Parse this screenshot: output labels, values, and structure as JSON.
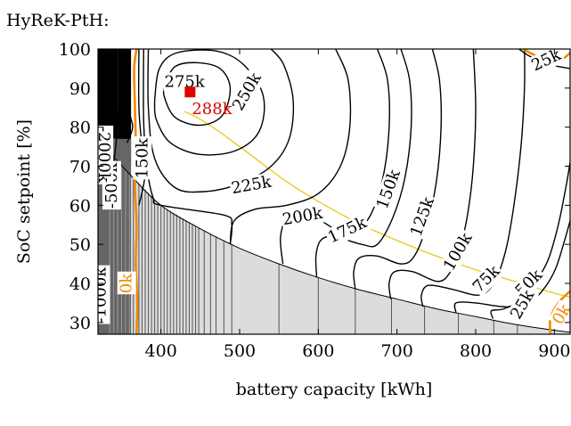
{
  "figure_title": "HyReK-PtH:",
  "chart_data": {
    "type": "contour",
    "title": "HyReK-PtH:",
    "xlabel": "battery capacity [kWh]",
    "ylabel": "SoC setpoint [%]",
    "xlim": [
      320,
      920
    ],
    "ylim": [
      27,
      100
    ],
    "xticks": [
      400,
      500,
      600,
      700,
      800,
      900
    ],
    "yticks": [
      30,
      40,
      50,
      60,
      70,
      80,
      90,
      100
    ],
    "grid": false,
    "optimum": {
      "x": 437,
      "y": 89,
      "label": "288k",
      "color": "#e00000"
    },
    "infeasible_boundary": [
      [
        320,
        77
      ],
      [
        360,
        68
      ],
      [
        400,
        60
      ],
      [
        450,
        54
      ],
      [
        500,
        49
      ],
      [
        550,
        45
      ],
      [
        600,
        41.5
      ],
      [
        650,
        38.5
      ],
      [
        700,
        36
      ],
      [
        750,
        33.5
      ],
      [
        800,
        31.5
      ],
      [
        850,
        29.5
      ],
      [
        900,
        28
      ],
      [
        920,
        27.5
      ]
    ],
    "highlight_curve": [
      [
        430,
        84
      ],
      [
        450,
        82
      ],
      [
        480,
        78
      ],
      [
        520,
        72
      ],
      [
        560,
        66
      ],
      [
        600,
        61
      ],
      [
        650,
        55.5
      ],
      [
        700,
        51
      ],
      [
        750,
        47
      ],
      [
        800,
        43.5
      ],
      [
        850,
        40.5
      ],
      [
        900,
        37.5
      ],
      [
        920,
        36.5
      ]
    ],
    "contours": [
      {
        "level": "275k",
        "points": [
          [
            405,
            91
          ],
          [
            418,
            95.5
          ],
          [
            445,
            96.5
          ],
          [
            475,
            95
          ],
          [
            488,
            90
          ],
          [
            478,
            83
          ],
          [
            450,
            80.5
          ],
          [
            418,
            82.5
          ],
          [
            404,
            88
          ],
          [
            405,
            91
          ]
        ],
        "label": {
          "text": "275k",
          "x": 430,
          "y": 91.5,
          "angle": 0
        }
      },
      {
        "level": "250k",
        "points": [
          [
            392,
            87
          ],
          [
            398,
            95
          ],
          [
            420,
            99
          ],
          [
            470,
            99.5
          ],
          [
            505,
            96
          ],
          [
            530,
            88
          ],
          [
            525,
            79
          ],
          [
            495,
            74
          ],
          [
            450,
            73
          ],
          [
            412,
            76
          ],
          [
            394,
            82
          ],
          [
            392,
            87
          ]
        ],
        "label": {
          "text": "250k",
          "x": 510,
          "y": 89,
          "angle": -60
        }
      },
      {
        "level": "225k",
        "points": [
          [
            384,
            100
          ],
          [
            384,
            85
          ],
          [
            392,
            72
          ],
          [
            418,
            64.5
          ],
          [
            455,
            63.5
          ],
          [
            500,
            65.5
          ],
          [
            540,
            70
          ],
          [
            563,
            77
          ],
          [
            568,
            87
          ],
          [
            556,
            96
          ],
          [
            540,
            100
          ]
        ],
        "label": {
          "text": "225k",
          "x": 515,
          "y": 65,
          "angle": -10
        }
      },
      {
        "level": "200k",
        "points": [
          [
            378,
            100
          ],
          [
            378,
            82
          ],
          [
            382,
            70
          ],
          [
            390,
            62
          ],
          [
            400,
            60
          ],
          [
            480,
            57.5
          ],
          [
            490,
            55
          ],
          [
            488,
            50
          ]
        ],
        "label": {
          "text": "200k",
          "x": 580,
          "y": 57,
          "angle": -10
        }
      },
      {
        "level": "200k",
        "points": [
          [
            488,
            50
          ],
          [
            493,
            56
          ],
          [
            520,
            59
          ],
          [
            560,
            60
          ],
          [
            600,
            63
          ],
          [
            628,
            70
          ],
          [
            640,
            80
          ],
          [
            638,
            92
          ],
          [
            622,
            100
          ]
        ],
        "label": null
      },
      {
        "level": "175k",
        "points": [
          [
            555,
            45
          ],
          [
            552,
            52
          ],
          [
            562,
            57
          ],
          [
            585,
            58
          ],
          [
            620,
            54
          ],
          [
            640,
            52
          ],
          [
            665,
            57
          ],
          [
            682,
            67
          ],
          [
            690,
            80
          ],
          [
            688,
            92
          ],
          [
            675,
            100
          ]
        ],
        "label": {
          "text": "175k",
          "x": 637,
          "y": 53.5,
          "angle": -25
        }
      },
      {
        "level": "150k",
        "points": [
          [
            372,
            100
          ],
          [
            372,
            85
          ],
          [
            376,
            75
          ],
          [
            380,
            68
          ],
          [
            372,
            60
          ]
        ],
        "label": {
          "text": "150k",
          "x": 377,
          "y": 72,
          "angle": -90
        }
      },
      {
        "level": "150k",
        "points": [
          [
            598,
            41.5
          ],
          [
            597,
            47
          ],
          [
            603,
            51
          ],
          [
            620,
            52
          ],
          [
            655,
            50
          ],
          [
            675,
            50
          ],
          [
            695,
            57
          ],
          [
            710,
            67
          ],
          [
            718,
            80
          ],
          [
            716,
            92
          ],
          [
            705,
            100
          ]
        ],
        "label": {
          "text": "150k",
          "x": 690,
          "y": 64,
          "angle": -70
        }
      },
      {
        "level": "125k",
        "points": [
          [
            647,
            38.5
          ],
          [
            645,
            43
          ],
          [
            652,
            46.5
          ],
          [
            675,
            47
          ],
          [
            705,
            45
          ],
          [
            722,
            47
          ],
          [
            738,
            55
          ],
          [
            750,
            66
          ],
          [
            756,
            80
          ],
          [
            754,
            92
          ],
          [
            745,
            100
          ]
        ],
        "label": {
          "text": "125k",
          "x": 733,
          "y": 57,
          "angle": -70
        }
      },
      {
        "level": "100k",
        "points": [
          [
            692,
            36
          ],
          [
            690,
            40
          ],
          [
            697,
            43
          ],
          [
            720,
            43
          ],
          [
            752,
            40.5
          ],
          [
            768,
            43
          ],
          [
            780,
            49
          ],
          [
            790,
            58
          ],
          [
            797,
            70
          ],
          [
            800,
            85
          ],
          [
            797,
            100
          ]
        ],
        "label": {
          "text": "100k",
          "x": 778,
          "y": 48,
          "angle": -60
        }
      },
      {
        "level": "75k",
        "points": [
          [
            733,
            34
          ],
          [
            731,
            37
          ],
          [
            740,
            39.5
          ],
          [
            770,
            38.5
          ],
          [
            800,
            37
          ],
          [
            815,
            38
          ],
          [
            828,
            42
          ],
          [
            840,
            50
          ],
          [
            850,
            62
          ],
          [
            858,
            76
          ],
          [
            862,
            90
          ],
          [
            862,
            100
          ]
        ],
        "label": {
          "text": "75k",
          "x": 814,
          "y": 41,
          "angle": -45
        }
      },
      {
        "level": "50k",
        "points": [
          [
            775,
            32.5
          ],
          [
            775,
            35
          ],
          [
            800,
            35
          ],
          [
            840,
            34
          ],
          [
            870,
            35.5
          ],
          [
            888,
            39
          ],
          [
            902,
            44
          ],
          [
            913,
            51
          ],
          [
            920,
            56
          ]
        ],
        "label": {
          "text": "50k",
          "x": 868,
          "y": 40,
          "angle": -45
        }
      },
      {
        "level": "25k",
        "points": [
          [
            822,
            31
          ],
          [
            820,
            33
          ],
          [
            836,
            33.5
          ],
          [
            860,
            36
          ],
          [
            875,
            40
          ],
          [
            892,
            46
          ],
          [
            905,
            55
          ],
          [
            915,
            65
          ],
          [
            920,
            71
          ]
        ],
        "label": {
          "text": "25k",
          "x": 860,
          "y": 34.5,
          "angle": -60
        }
      },
      {
        "level": "25k",
        "points": [
          [
            855,
            100
          ],
          [
            870,
            98
          ],
          [
            895,
            96
          ],
          [
            920,
            95
          ]
        ],
        "label": {
          "text": "25k",
          "x": 890,
          "y": 97,
          "angle": -25
        }
      },
      {
        "level": "150k-left",
        "points": [
          [
            361,
            100
          ],
          [
            360,
            85
          ],
          [
            364,
            80
          ],
          [
            357,
            76
          ]
        ],
        "label": null
      },
      {
        "level": "-500k",
        "points": [
          [
            348,
            100
          ],
          [
            347,
            88
          ],
          [
            343,
            76
          ],
          [
            339,
            70
          ],
          [
            334,
            65
          ]
        ],
        "label": {
          "text": "-500k",
          "x": 338,
          "y": 65,
          "angle": -90
        }
      },
      {
        "level": "-1000k",
        "points": [
          [
            334,
            100
          ],
          [
            333,
            85
          ],
          [
            331,
            70
          ],
          [
            328,
            60
          ]
        ],
        "label": {
          "text": "-1000k",
          "x": 324,
          "y": 37,
          "angle": -90
        }
      }
    ],
    "zero_contours": [
      {
        "level": "0k",
        "points": [
          [
            369,
            100
          ],
          [
            366,
            95
          ],
          [
            367,
            85
          ],
          [
            368,
            75
          ],
          [
            367,
            65
          ],
          [
            369,
            55
          ],
          [
            368,
            45
          ],
          [
            370,
            35
          ],
          [
            369,
            27
          ]
        ],
        "label": {
          "text": "0k",
          "x": 357,
          "y": 40,
          "angle": -90
        }
      },
      {
        "level": "0k",
        "points": [
          [
            860,
            100
          ],
          [
            880,
            98
          ],
          [
            905,
            97
          ],
          [
            920,
            99
          ]
        ],
        "label": null
      },
      {
        "level": "0k",
        "points": [
          [
            920,
            38
          ],
          [
            905,
            35
          ],
          [
            895,
            31
          ],
          [
            895,
            27
          ]
        ],
        "label": {
          "text": "0k",
          "x": 910,
          "y": 32,
          "angle": -60
        }
      }
    ],
    "vertical_lines_x": [
      335,
      340,
      345,
      350,
      355,
      360,
      365,
      372,
      376,
      380,
      384,
      388,
      392,
      396,
      400,
      404,
      408,
      412,
      416,
      420,
      424,
      428,
      432,
      436,
      440,
      444,
      448,
      455,
      463,
      470,
      480,
      490,
      550,
      600,
      647,
      693,
      735,
      778,
      823,
      853
    ],
    "left_labels": [
      {
        "text": "-2000k",
        "x": 327,
        "y": 73,
        "angle": 90
      }
    ]
  }
}
